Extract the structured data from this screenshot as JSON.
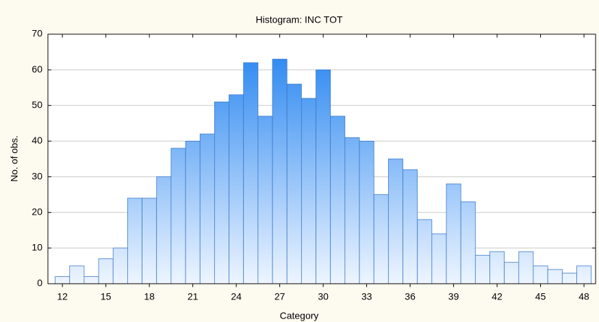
{
  "chart_data": {
    "type": "histogram",
    "title": "Histogram: INC TOT",
    "x_label": "Category",
    "y_label": "No. of obs.",
    "bins": [
      11.5,
      12.5,
      13.5,
      14.5,
      15.5,
      16.5,
      17.5,
      18.5,
      19.5,
      20.5,
      21.5,
      22.5,
      23.5,
      24.5,
      25.5,
      26.5,
      27.5,
      28.5,
      29.5,
      30.5,
      31.5,
      32.5,
      33.5,
      34.5,
      35.5,
      36.5,
      37.5,
      38.5,
      39.5,
      40.5,
      41.5,
      42.5,
      43.5,
      44.5,
      45.5,
      46.5,
      47.5,
      48.5
    ],
    "values": [
      2,
      5,
      2,
      7,
      10,
      24,
      24,
      30,
      38,
      40,
      42,
      51,
      53,
      62,
      47,
      63,
      56,
      52,
      60,
      47,
      41,
      40,
      25,
      35,
      32,
      18,
      14,
      28,
      23,
      8,
      9,
      6,
      9,
      5,
      4,
      3,
      5
    ],
    "color": "#1e80f0",
    "xlim": [
      11,
      48.8
    ],
    "xticks": [
      12,
      15,
      18,
      21,
      24,
      27,
      30,
      33,
      36,
      39,
      42,
      45,
      48
    ],
    "ylim": [
      0,
      70
    ],
    "yticks": [
      0,
      10,
      20,
      30,
      40,
      50,
      60,
      70
    ],
    "grid": true
  }
}
